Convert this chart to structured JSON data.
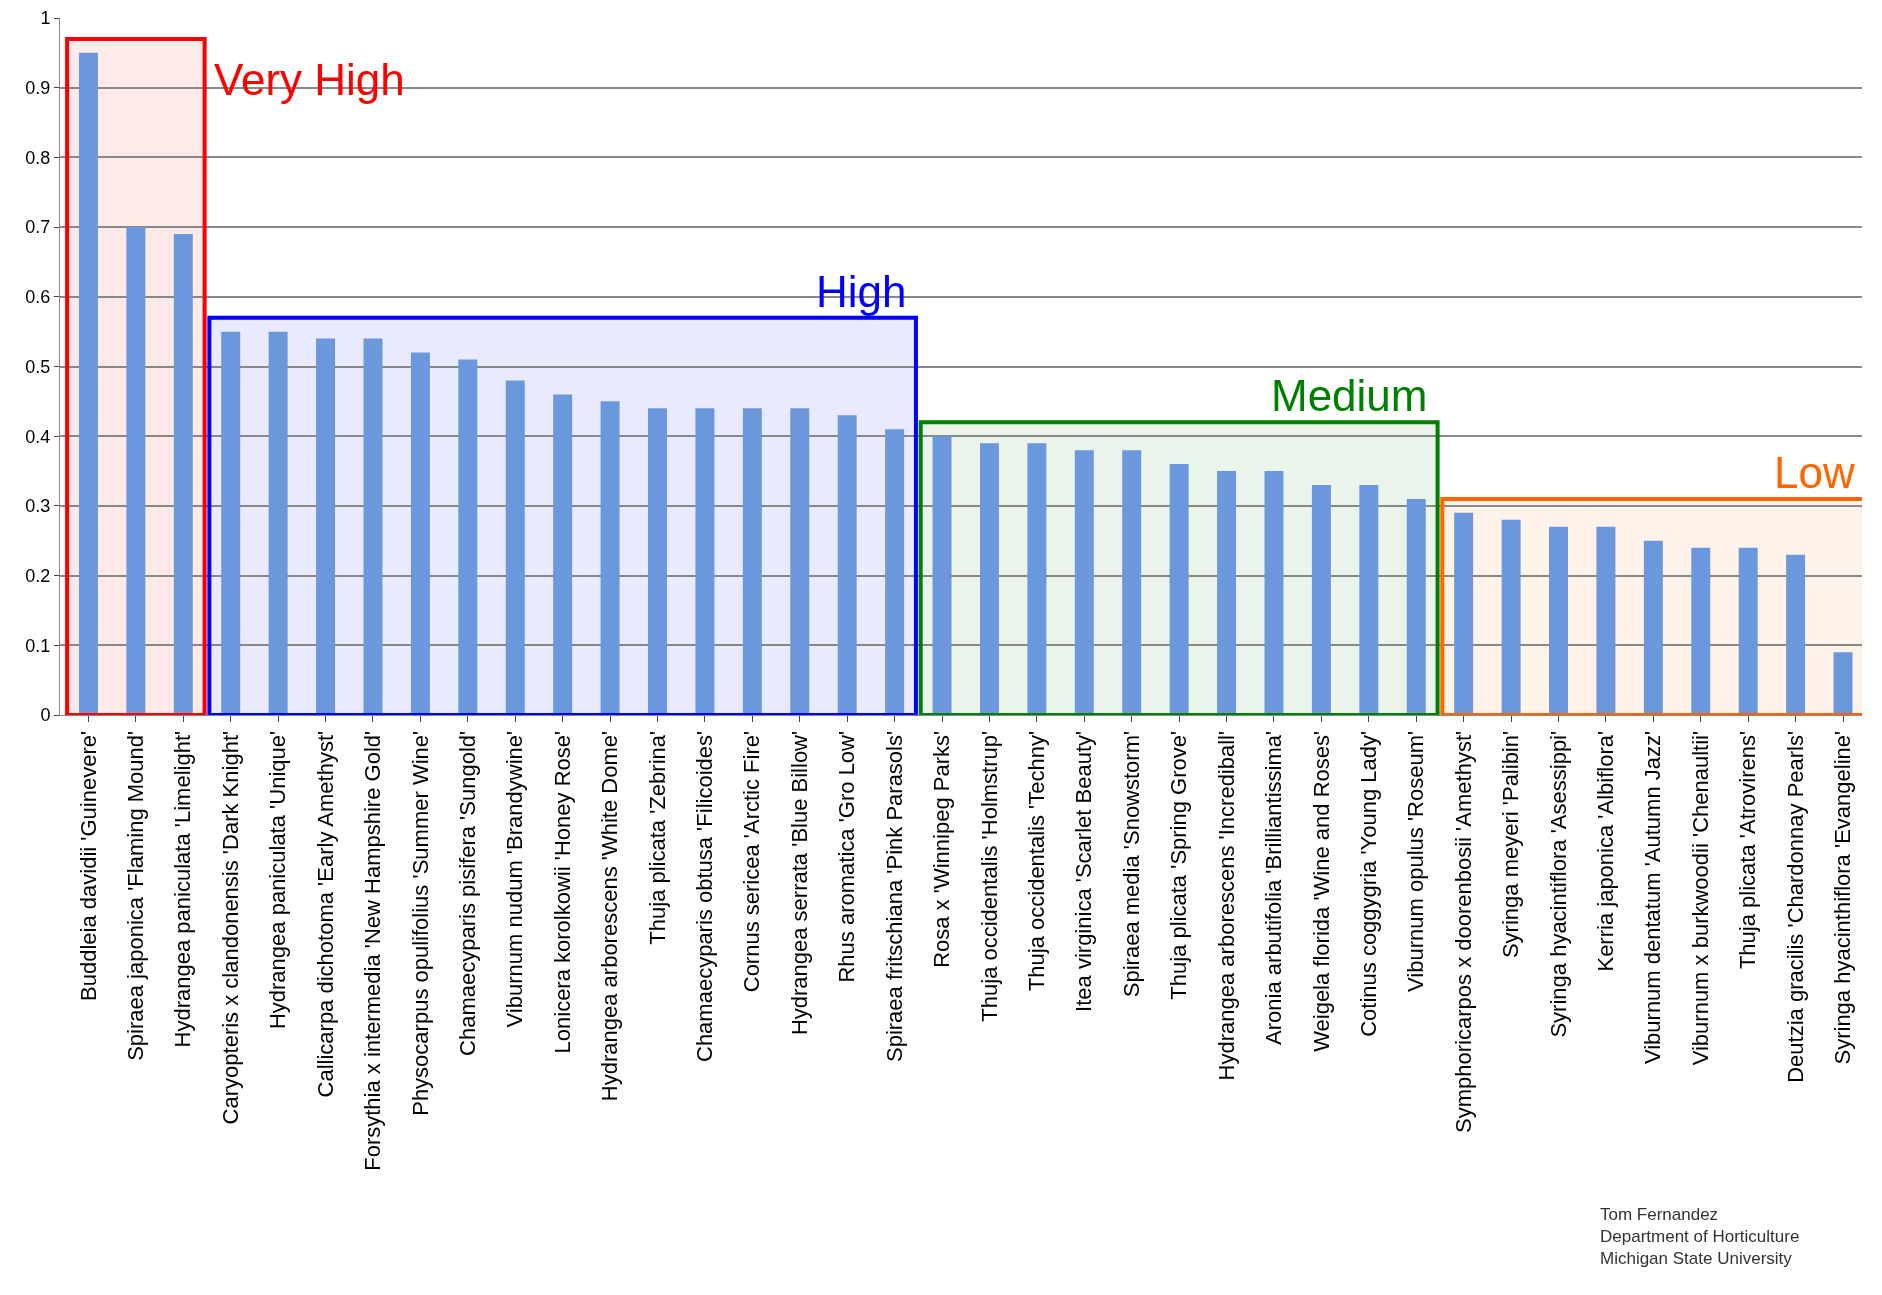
{
  "chart_data": {
    "type": "bar",
    "categories": [
      "Buddleia davidii 'Guinevere'",
      "Spiraea japonica 'Flaming Mound'",
      "Hydrangea paniculata 'Limelight'",
      "Caryopteris x clandonensis 'Dark Knight'",
      "Hydrangea paniculata 'Unique'",
      "Callicarpa dichotoma 'Early Amethyst'",
      "Forsythia x intermedia 'New Hampshire Gold'",
      "Physocarpus opulifolius 'Summer Wine'",
      "Chamaecyparis pisifera 'Sungold'",
      "Viburnum nudum 'Brandywine'",
      "Lonicera korolkowii 'Honey Rose'",
      "Hydrangea arborescens 'White Dome'",
      "Thuja plicata 'Zebrina'",
      "Chamaecyparis obtusa 'Filicoides'",
      "Cornus sericea 'Arctic Fire'",
      "Hydrangea serrata 'Blue Billow'",
      "Rhus aromatica 'Gro Low'",
      "Spiraea fritschiana 'Pink Parasols'",
      "Rosa x 'Winnipeg Parks'",
      "Thuja occidentalis 'Holmstrup'",
      "Thuja occidentalis 'Techny'",
      "Itea virginica 'Scarlet Beauty'",
      "Spiraea media 'Snowstorm'",
      "Thuja plicata 'Spring Grove'",
      "Hydrangea arborescens 'Incrediball'",
      "Aronia arbutifolia 'Brilliantissima'",
      "Weigela florida 'Wine and Roses'",
      "Cotinus coggygria 'Young Lady'",
      "Viburnum opulus 'Roseum'",
      "Symphoricarpos x doorenbosii 'Amethyst'",
      "Syringa meyeri 'Palibin'",
      "Syringa hyacintiflora 'Asessippi'",
      "Kerria japonica 'Albiflora'",
      "Viburnum dentatum 'Autumn Jazz'",
      "Viburnum x burkwoodii 'Chenaultii'",
      "Thuja plicata 'Atrovirens'",
      "Deutzia gracilis 'Chardonnay Pearls'",
      "Syringa hyacinthiflora 'Evangeline'"
    ],
    "values": [
      0.95,
      0.7,
      0.69,
      0.55,
      0.55,
      0.54,
      0.54,
      0.52,
      0.51,
      0.48,
      0.46,
      0.45,
      0.44,
      0.44,
      0.44,
      0.44,
      0.43,
      0.41,
      0.4,
      0.39,
      0.39,
      0.38,
      0.38,
      0.36,
      0.35,
      0.35,
      0.33,
      0.33,
      0.31,
      0.29,
      0.28,
      0.27,
      0.27,
      0.25,
      0.24,
      0.24,
      0.23,
      0.09
    ],
    "color": "#6b97dc",
    "ylim": [
      0,
      1
    ],
    "yticks": [
      0,
      0.1,
      0.2,
      0.3,
      0.4,
      0.5,
      0.6,
      0.7,
      0.8,
      0.9,
      1
    ],
    "grid": "y",
    "bands": [
      {
        "axis": "x",
        "from": "Buddleia davidii 'Guinevere'",
        "to": "Hydrangea paniculata 'Limelight'",
        "label": "Very High",
        "color": "#ff0000"
      },
      {
        "axis": "x",
        "from": "Caryopteris x clandonensis 'Dark Knight'",
        "to": "Spiraea fritschiana 'Pink Parasols'",
        "label": "High",
        "color": "#0000ff"
      },
      {
        "axis": "x",
        "from": "Rosa x 'Winnipeg Parks'",
        "to": "Viburnum opulus 'Roseum'",
        "label": "Medium",
        "color": "#008000"
      },
      {
        "axis": "x",
        "from": "Symphoricarpos x doorenbosii 'Amethyst'",
        "to": "Syringa hyacinthiflora 'Evangeline'",
        "label": "Low",
        "color": "#ff6600"
      }
    ],
    "annotations": [
      "Tom Fernandez",
      "Department of Horticulture",
      "Michigan State University"
    ]
  }
}
